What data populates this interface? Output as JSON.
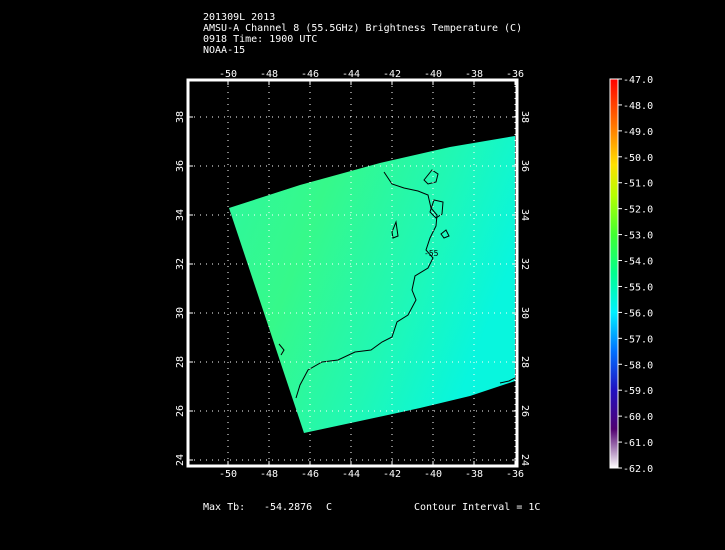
{
  "header": {
    "line1": "201309L 2013",
    "line2": "AMSU-A Channel 8 (55.5GHz) Brightness Temperature (C)",
    "line3": "0918 Time: 1900 UTC",
    "line4": "NOAA-15"
  },
  "axes": {
    "lon_ticks": [
      "-50",
      "-48",
      "-46",
      "-44",
      "-42",
      "-40",
      "-38",
      "-36"
    ],
    "lat_ticks": [
      "24",
      "26",
      "28",
      "30",
      "32",
      "34",
      "36",
      "38"
    ]
  },
  "contour_label": "-55",
  "footer": {
    "max_tb_label": "Max Tb:",
    "max_tb_value": "-54.2876",
    "max_tb_unit": "C",
    "contour_interval": "Contour Interval = 1C"
  },
  "colorbar": {
    "labels": [
      "-47.0",
      "-48.0",
      "-49.0",
      "-50.0",
      "-51.0",
      "-52.0",
      "-53.0",
      "-54.0",
      "-55.0",
      "-56.0",
      "-57.0",
      "-58.0",
      "-59.0",
      "-60.0",
      "-61.0",
      "-62.0"
    ],
    "colors": [
      "#ff0000",
      "#ff5500",
      "#ffa000",
      "#ffe000",
      "#c8ff00",
      "#7fff00",
      "#30ff30",
      "#00ff80",
      "#00ffc0",
      "#00e0ff",
      "#0090ff",
      "#0030ff",
      "#3000c0",
      "#600090",
      "#500060",
      "#ffffff"
    ]
  }
}
